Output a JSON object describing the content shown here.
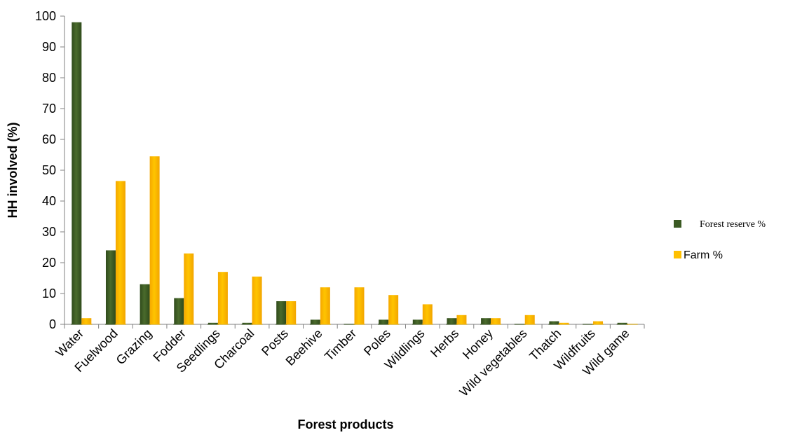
{
  "chart_data": {
    "type": "bar",
    "title": "",
    "xlabel": "Forest products",
    "ylabel": "HH involved (%)",
    "ylim": [
      0,
      100
    ],
    "yticks": [
      0,
      10,
      20,
      30,
      40,
      50,
      60,
      70,
      80,
      90,
      100
    ],
    "grid": false,
    "legend_position": "right",
    "categories": [
      "Water",
      "Fuelwood",
      "Grazing",
      "Fodder",
      "Seedlings",
      "Charcoal",
      "Posts",
      "Beehive",
      "Timber",
      "Poles",
      "Wildlings",
      "Herbs",
      "Honey",
      "Wild vegetables",
      "Thatch",
      "Wildfruits",
      "Wild game"
    ],
    "series": [
      {
        "name": "Forest reserve %",
        "color": "#3b5a23",
        "values": [
          98,
          24,
          13,
          8.5,
          0.5,
          0.5,
          7.5,
          1.5,
          0,
          1.5,
          1.5,
          2,
          2,
          0,
          1,
          0,
          0.5
        ]
      },
      {
        "name": "Farm %",
        "color": "#ffc000",
        "values": [
          2,
          46.5,
          54.5,
          23,
          17,
          15.5,
          7.5,
          12,
          12,
          9.5,
          6.5,
          3,
          2,
          3,
          0.5,
          1,
          0
        ]
      }
    ]
  }
}
